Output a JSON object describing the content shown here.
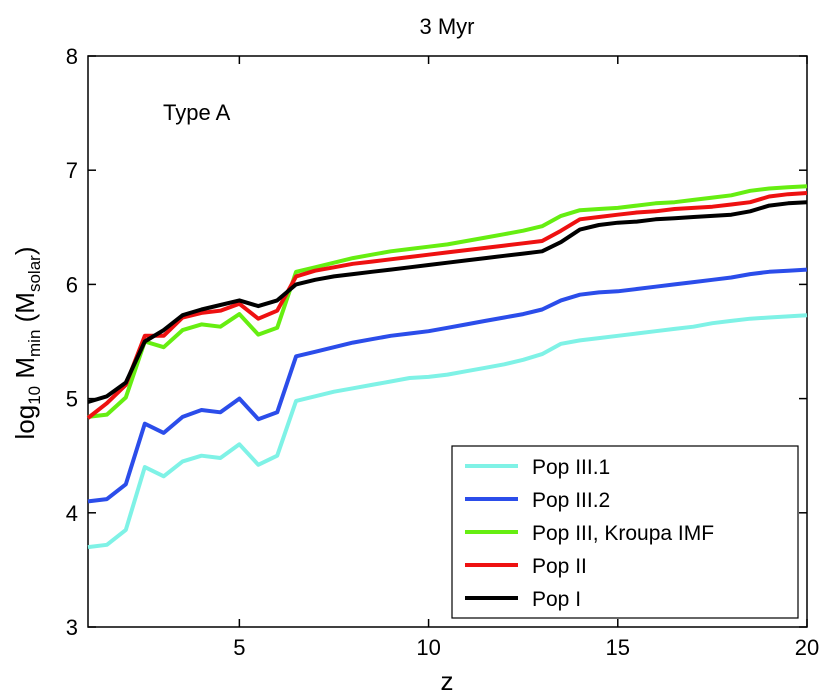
{
  "chart_data": {
    "type": "line",
    "title": "3 Myr",
    "xlabel": "z",
    "ylabel": {
      "base": "log",
      "base_sub": "10",
      "main": " M",
      "main_sub": "min",
      "unit_open": " (M",
      "unit_sub": "solar",
      "unit_close": ")"
    },
    "xlim": [
      1,
      20
    ],
    "ylim": [
      3,
      8
    ],
    "xticks": [
      5,
      10,
      15,
      20
    ],
    "yticks": [
      3,
      4,
      5,
      6,
      7,
      8
    ],
    "annotation": "Type A",
    "legend_position": "bottom-right",
    "x": [
      1,
      1.5,
      2,
      2.5,
      3,
      3.5,
      4,
      4.5,
      5,
      5.5,
      6,
      6.5,
      7,
      7.5,
      8,
      8.5,
      9,
      9.5,
      10,
      10.5,
      11,
      11.5,
      12,
      12.5,
      13,
      13.5,
      14,
      14.5,
      15,
      15.5,
      16,
      16.5,
      17,
      17.5,
      18,
      18.5,
      19,
      19.5,
      20
    ],
    "series": [
      {
        "name": "Pop III.1",
        "color": "#7ff2e6",
        "values": [
          3.7,
          3.72,
          3.85,
          4.4,
          4.32,
          4.45,
          4.5,
          4.48,
          4.6,
          4.42,
          4.5,
          4.98,
          5.02,
          5.06,
          5.09,
          5.12,
          5.15,
          5.18,
          5.19,
          5.21,
          5.24,
          5.27,
          5.3,
          5.34,
          5.39,
          5.48,
          5.51,
          5.53,
          5.55,
          5.57,
          5.59,
          5.61,
          5.63,
          5.66,
          5.68,
          5.7,
          5.71,
          5.72,
          5.73
        ]
      },
      {
        "name": "Pop III.2",
        "color": "#2b4dea",
        "values": [
          4.1,
          4.12,
          4.25,
          4.78,
          4.7,
          4.84,
          4.9,
          4.88,
          5.0,
          4.82,
          4.88,
          5.37,
          5.41,
          5.45,
          5.49,
          5.52,
          5.55,
          5.57,
          5.59,
          5.62,
          5.65,
          5.68,
          5.71,
          5.74,
          5.78,
          5.86,
          5.91,
          5.93,
          5.94,
          5.96,
          5.98,
          6.0,
          6.02,
          6.04,
          6.06,
          6.09,
          6.11,
          6.12,
          6.13
        ]
      },
      {
        "name": "Pop III, Kroupa IMF",
        "color": "#66ee11",
        "values": [
          4.84,
          4.86,
          5.01,
          5.5,
          5.45,
          5.6,
          5.65,
          5.63,
          5.74,
          5.56,
          5.62,
          6.11,
          6.15,
          6.19,
          6.23,
          6.26,
          6.29,
          6.31,
          6.33,
          6.35,
          6.38,
          6.41,
          6.44,
          6.47,
          6.51,
          6.6,
          6.65,
          6.66,
          6.67,
          6.69,
          6.71,
          6.72,
          6.74,
          6.76,
          6.78,
          6.82,
          6.84,
          6.85,
          6.86
        ]
      },
      {
        "name": "Pop II",
        "color": "#ee1111",
        "values": [
          4.83,
          4.96,
          5.12,
          5.55,
          5.55,
          5.71,
          5.75,
          5.77,
          5.83,
          5.7,
          5.77,
          6.07,
          6.12,
          6.15,
          6.18,
          6.2,
          6.22,
          6.24,
          6.26,
          6.28,
          6.3,
          6.32,
          6.34,
          6.36,
          6.38,
          6.47,
          6.57,
          6.59,
          6.61,
          6.63,
          6.64,
          6.66,
          6.67,
          6.68,
          6.7,
          6.72,
          6.77,
          6.79,
          6.8
        ]
      },
      {
        "name": "Pop I",
        "color": "#000000",
        "values": [
          4.97,
          5.02,
          5.14,
          5.5,
          5.6,
          5.73,
          5.78,
          5.82,
          5.86,
          5.81,
          5.86,
          6.0,
          6.04,
          6.07,
          6.09,
          6.11,
          6.13,
          6.15,
          6.17,
          6.19,
          6.21,
          6.23,
          6.25,
          6.27,
          6.29,
          6.37,
          6.48,
          6.52,
          6.54,
          6.55,
          6.57,
          6.58,
          6.59,
          6.6,
          6.61,
          6.64,
          6.69,
          6.71,
          6.72
        ]
      }
    ]
  }
}
